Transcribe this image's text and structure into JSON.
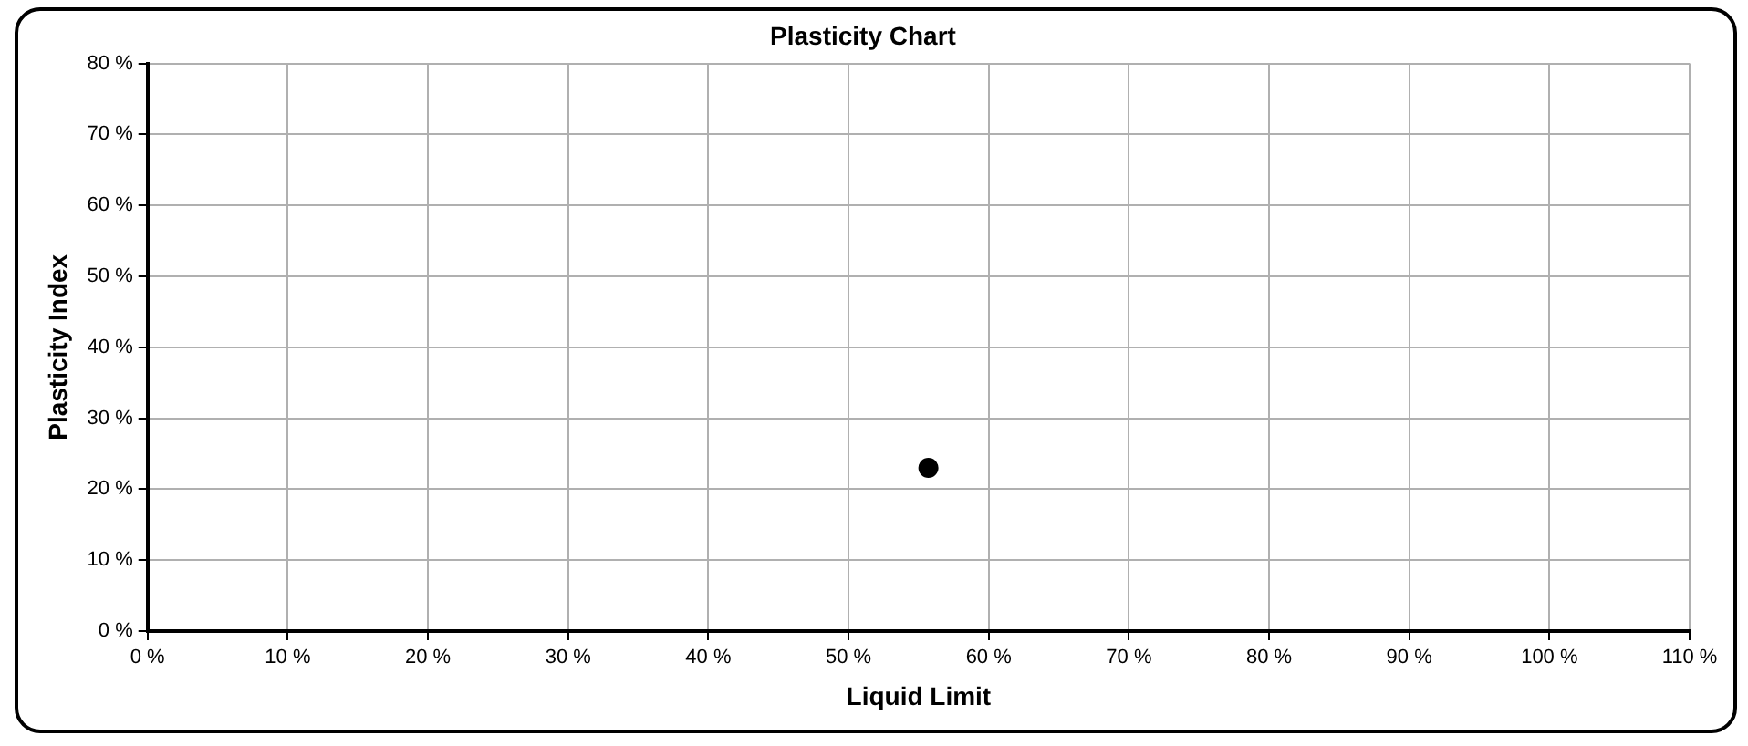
{
  "chart_data": {
    "type": "scatter",
    "title": "Plasticity Chart",
    "xlabel": "Liquid Limit",
    "ylabel": "Plasticity Index",
    "x": [
      55.7
    ],
    "values": [
      23
    ],
    "color": "#000000",
    "marker": "circle",
    "xlim": [
      0,
      110
    ],
    "xticks": [
      {
        "value": 0,
        "label": "0 %"
      },
      {
        "value": 10,
        "label": "10 %"
      },
      {
        "value": 20,
        "label": "20 %"
      },
      {
        "value": 30,
        "label": "30 %"
      },
      {
        "value": 40,
        "label": "40 %"
      },
      {
        "value": 50,
        "label": "50 %"
      },
      {
        "value": 60,
        "label": "60 %"
      },
      {
        "value": 70,
        "label": "70 %"
      },
      {
        "value": 80,
        "label": "80 %"
      },
      {
        "value": 90,
        "label": "90 %"
      },
      {
        "value": 100,
        "label": "100 %"
      },
      {
        "value": 110,
        "label": "110 %"
      }
    ],
    "ylim": [
      0,
      80
    ],
    "yticks": [
      {
        "value": 0,
        "label": "0 %"
      },
      {
        "value": 10,
        "label": "10 %"
      },
      {
        "value": 20,
        "label": "20 %"
      },
      {
        "value": 30,
        "label": "30 %"
      },
      {
        "value": 40,
        "label": "40 %"
      },
      {
        "value": 50,
        "label": "50 %"
      },
      {
        "value": 60,
        "label": "60 %"
      },
      {
        "value": 70,
        "label": "70 %"
      },
      {
        "value": 80,
        "label": "80 %"
      }
    ],
    "grid": true,
    "legend": false
  }
}
